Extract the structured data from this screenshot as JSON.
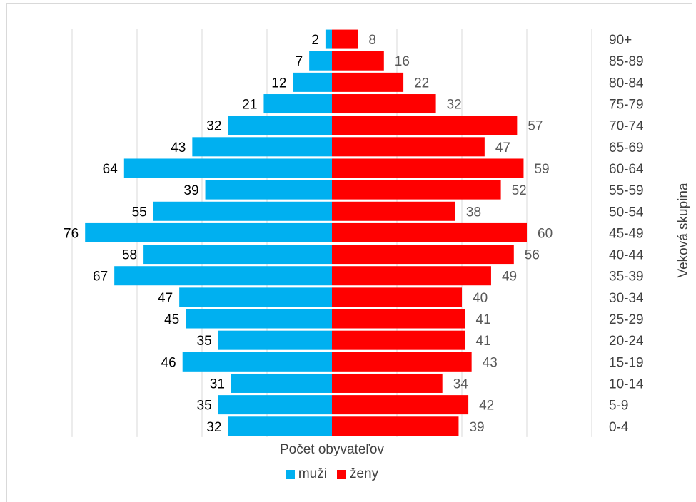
{
  "chart_data": {
    "type": "bar",
    "orientation": "horizontal-population-pyramid",
    "categories": [
      "0-4",
      "5-9",
      "10-14",
      "15-19",
      "20-24",
      "25-29",
      "30-34",
      "35-39",
      "40-44",
      "45-49",
      "50-54",
      "55-59",
      "60-64",
      "65-69",
      "70-74",
      "75-79",
      "80-84",
      "85-89",
      "90+"
    ],
    "series": [
      {
        "name": "muži",
        "color": "#00b0f0",
        "values": [
          32,
          35,
          31,
          46,
          35,
          45,
          47,
          67,
          58,
          76,
          55,
          39,
          64,
          43,
          32,
          21,
          12,
          7,
          2
        ]
      },
      {
        "name": "ženy",
        "color": "#ff0000",
        "values": [
          39,
          42,
          34,
          43,
          41,
          41,
          40,
          49,
          56,
          60,
          38,
          52,
          59,
          47,
          57,
          32,
          22,
          16,
          8
        ]
      }
    ],
    "xlabel": "Počet obyvateľov",
    "ylabel": "Veková skupina",
    "xlim": [
      -80,
      80
    ],
    "grid": true,
    "legend": "bottom",
    "label_color_men": "#000000",
    "label_color_women": "#595959"
  }
}
